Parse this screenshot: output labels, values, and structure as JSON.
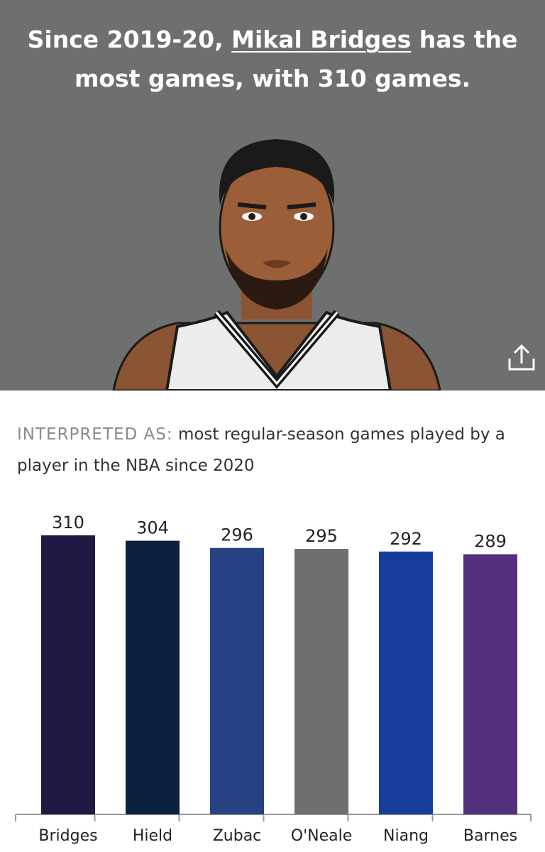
{
  "header": {
    "headline": [
      "Since 2019-20, ",
      "Mikal Bridges",
      " has the most games, with 310 games."
    ]
  },
  "interpretation": {
    "label": "INTERPRETED AS:",
    "text": "most regular-season games played by a player in the NBA since 2020"
  },
  "chart_data": {
    "type": "bar",
    "categories": [
      "Bridges",
      "Hield",
      "Zubac",
      "O'Neale",
      "Niang",
      "Barnes"
    ],
    "values": [
      310,
      304,
      296,
      295,
      292,
      289
    ],
    "colors": [
      "#1f1a44",
      "#0c2040",
      "#264282",
      "#6f6f6f",
      "#173d9c",
      "#53307e"
    ],
    "ylim": [
      0,
      310
    ]
  }
}
